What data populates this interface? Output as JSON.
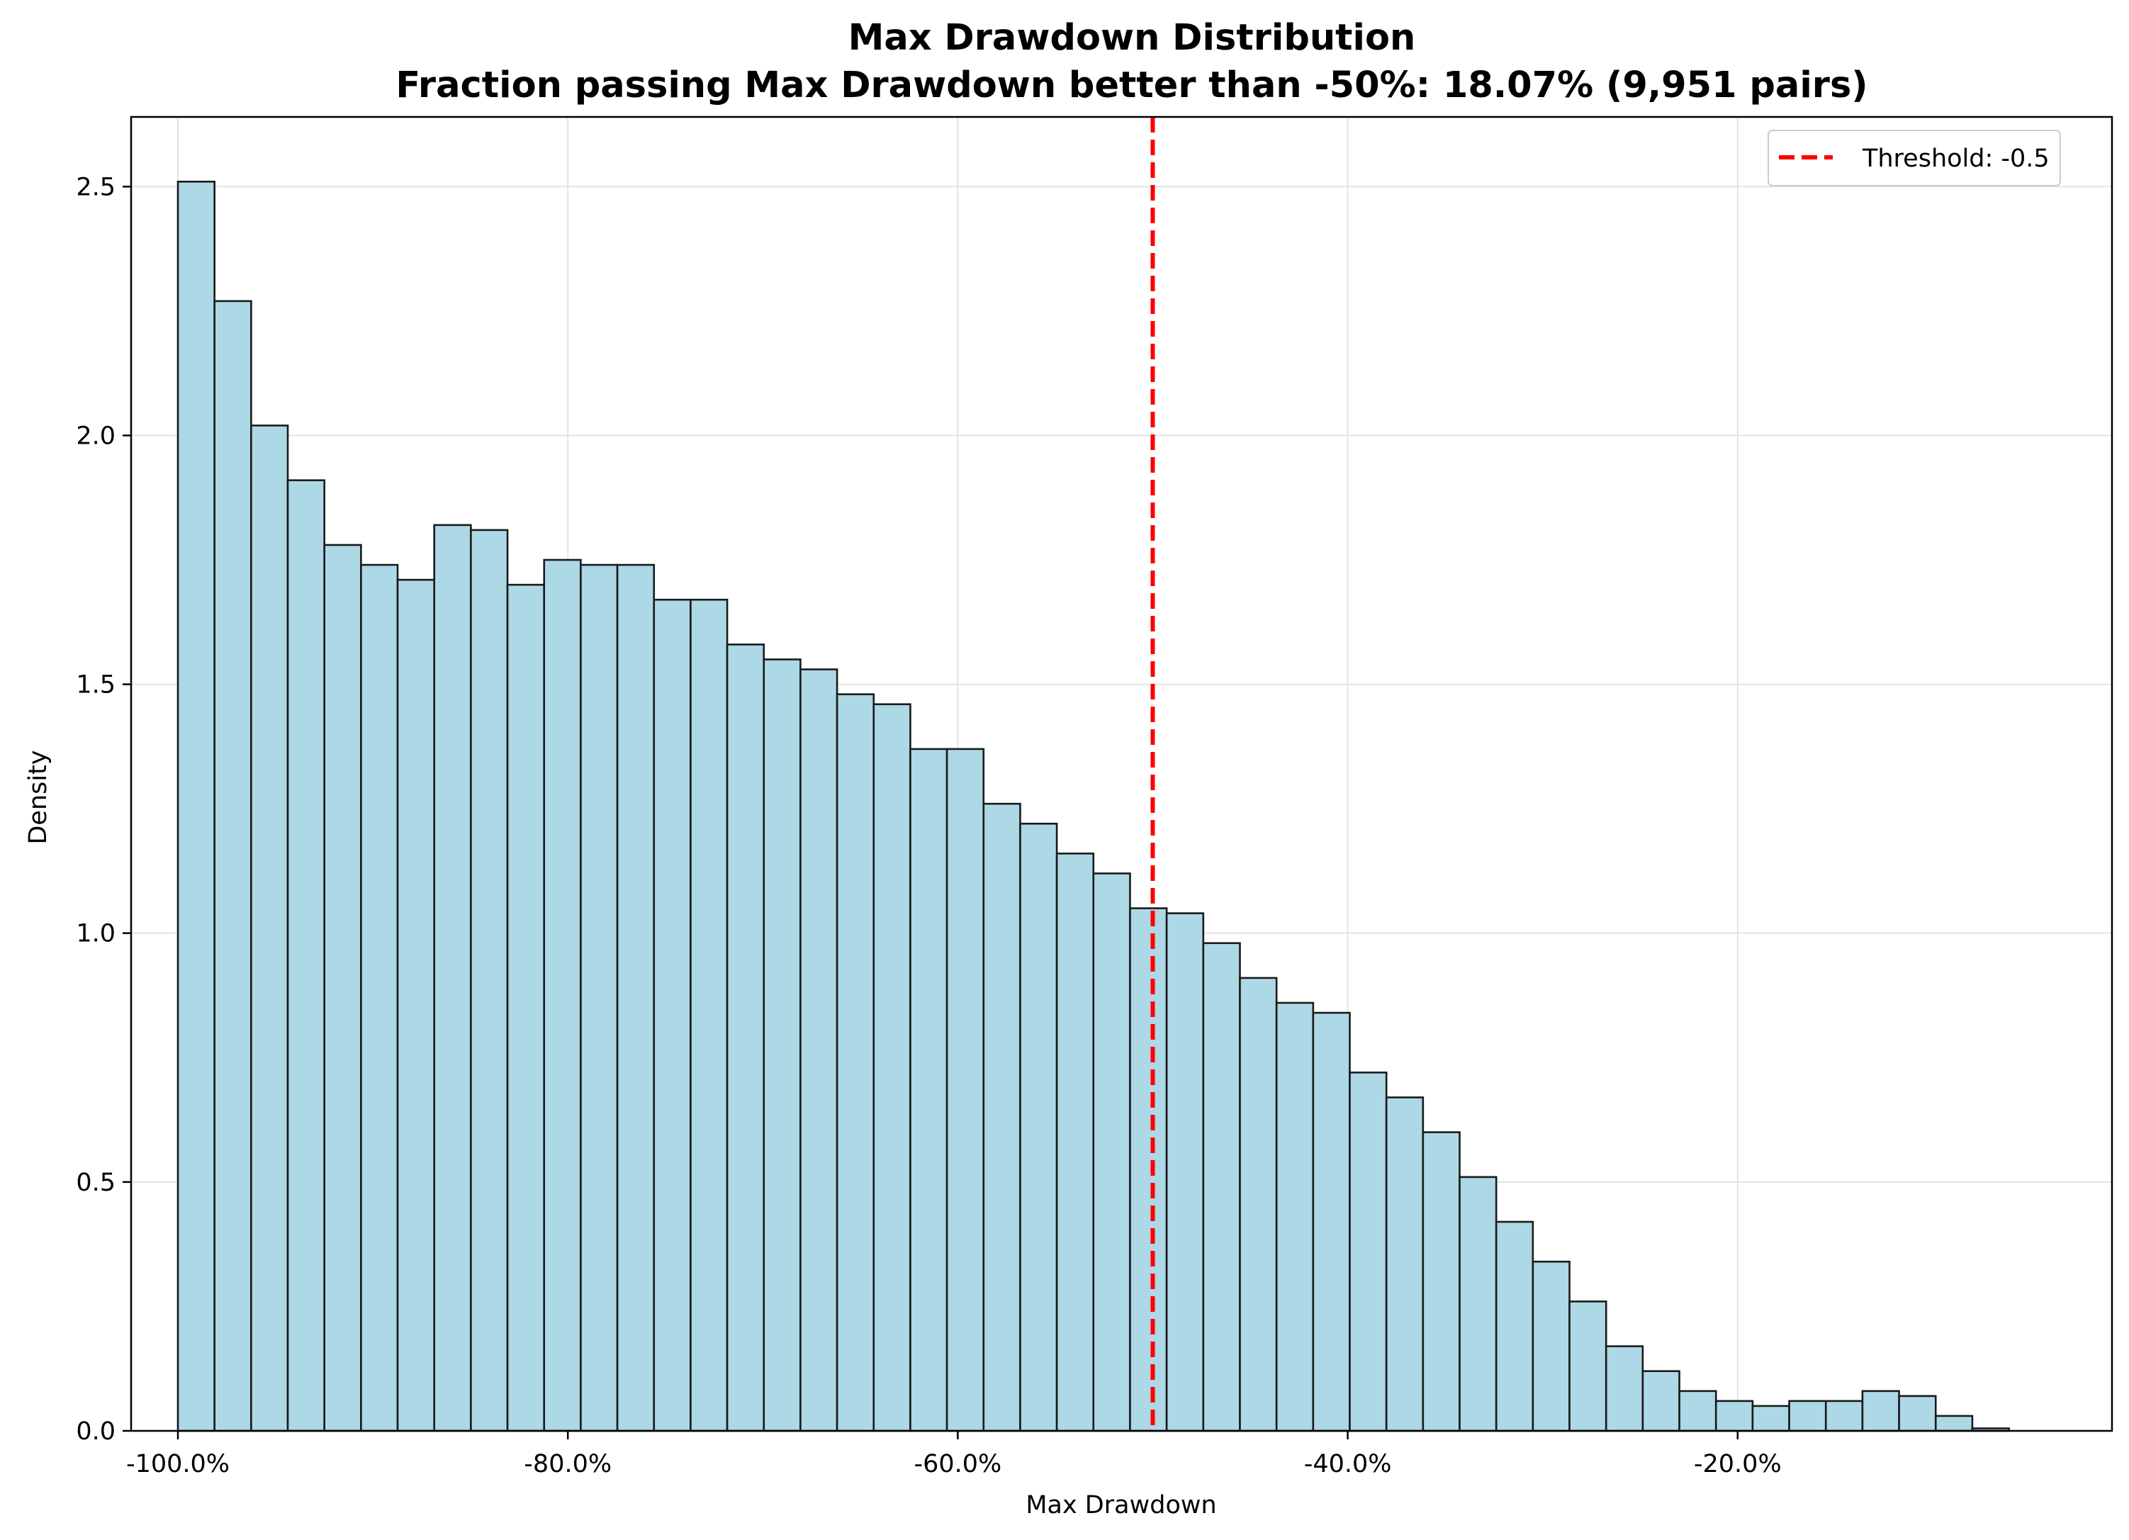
{
  "chart_data": {
    "type": "bar",
    "title": "Max Drawdown Distribution",
    "subtitle": "Fraction passing Max Drawdown better than -50%: 18.07% (9,951 pairs)",
    "xlabel": "Max Drawdown",
    "ylabel": "Density",
    "xlim": [
      -102.4,
      -0.8
    ],
    "ylim": [
      0,
      2.64
    ],
    "x_ticks": [
      -100,
      -80,
      -60,
      -40,
      -20
    ],
    "x_tick_labels": [
      "-100.0%",
      "-80.0%",
      "-60.0%",
      "-40.0%",
      "-20.0%"
    ],
    "y_ticks": [
      0.0,
      0.5,
      1.0,
      1.5,
      2.0,
      2.5
    ],
    "y_tick_labels": [
      "0.0",
      "0.5",
      "1.0",
      "1.5",
      "2.0",
      "2.5"
    ],
    "grid": true,
    "bin_start": -100.0,
    "bin_width": 1.8783,
    "values": [
      2.51,
      2.27,
      2.02,
      1.91,
      1.78,
      1.74,
      1.71,
      1.82,
      1.81,
      1.7,
      1.75,
      1.74,
      1.74,
      1.67,
      1.67,
      1.58,
      1.55,
      1.53,
      1.48,
      1.46,
      1.37,
      1.37,
      1.26,
      1.22,
      1.16,
      1.12,
      1.05,
      1.04,
      0.98,
      0.91,
      0.86,
      0.84,
      0.72,
      0.67,
      0.6,
      0.51,
      0.42,
      0.34,
      0.26,
      0.17,
      0.12,
      0.08,
      0.06,
      0.05,
      0.06,
      0.06,
      0.08,
      0.07,
      0.03,
      0.005
    ],
    "bar_color": "#add8e6",
    "bar_edge_color": "#1a1a1a",
    "threshold": {
      "x": -50,
      "color": "#ff0000",
      "label": "Threshold: -0.5"
    },
    "legend_position": "top-right"
  }
}
